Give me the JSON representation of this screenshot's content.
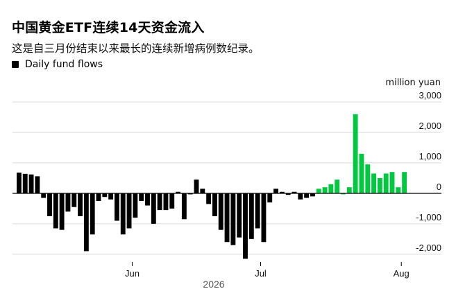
{
  "title": "中国黄金ETF连续14天资金流入",
  "subtitle": "这是自三月份结束以来最长的连续新增病例数纪录。",
  "legend": {
    "label": "Daily fund flows"
  },
  "colors": {
    "outflow": "#000000",
    "inflow": "#00c940",
    "grid": "#d9d9d9",
    "zero": "#000000"
  },
  "chart_data": {
    "type": "bar",
    "unit": "million yuan",
    "ylim": [
      -2300,
      3300
    ],
    "yticks": [
      3000,
      2000,
      1000,
      0,
      -1000,
      -2000
    ],
    "ytick_labels": [
      "3,000",
      "2,000",
      "1,000",
      "0",
      "-1,000",
      "-2,000"
    ],
    "xticks": [
      {
        "label": "Jun",
        "index": 18.5
      },
      {
        "label": "Jul",
        "index": 39.5
      },
      {
        "label": "Aug",
        "index": 62.5
      }
    ],
    "year_label": "2026",
    "values": [
      680,
      640,
      620,
      560,
      -150,
      -750,
      -1150,
      -1200,
      -600,
      -450,
      -750,
      -1900,
      -1350,
      -250,
      -120,
      -200,
      -900,
      -1350,
      -1150,
      -800,
      -250,
      -400,
      -1000,
      -550,
      -550,
      -500,
      50,
      -850,
      0,
      450,
      150,
      -350,
      -750,
      -1200,
      -1600,
      -1700,
      -1450,
      -2150,
      -1500,
      -1150,
      -1600,
      -300,
      150,
      50,
      -50,
      50,
      -200,
      -150,
      -100,
      150,
      200,
      300,
      450,
      0,
      200,
      2600,
      1300,
      950,
      650,
      500,
      650,
      700,
      200,
      700
    ],
    "series_colors": [
      "outflow",
      "outflow",
      "outflow",
      "outflow",
      "outflow",
      "outflow",
      "outflow",
      "outflow",
      "outflow",
      "outflow",
      "outflow",
      "outflow",
      "outflow",
      "outflow",
      "outflow",
      "outflow",
      "outflow",
      "outflow",
      "outflow",
      "outflow",
      "outflow",
      "outflow",
      "outflow",
      "outflow",
      "outflow",
      "outflow",
      "outflow",
      "outflow",
      "outflow",
      "outflow",
      "outflow",
      "outflow",
      "outflow",
      "outflow",
      "outflow",
      "outflow",
      "outflow",
      "outflow",
      "outflow",
      "outflow",
      "outflow",
      "outflow",
      "outflow",
      "outflow",
      "outflow",
      "outflow",
      "outflow",
      "outflow",
      "outflow",
      "inflow",
      "inflow",
      "inflow",
      "inflow",
      "inflow",
      "inflow",
      "inflow",
      "inflow",
      "inflow",
      "inflow",
      "inflow",
      "inflow",
      "inflow",
      "inflow",
      "inflow"
    ]
  }
}
